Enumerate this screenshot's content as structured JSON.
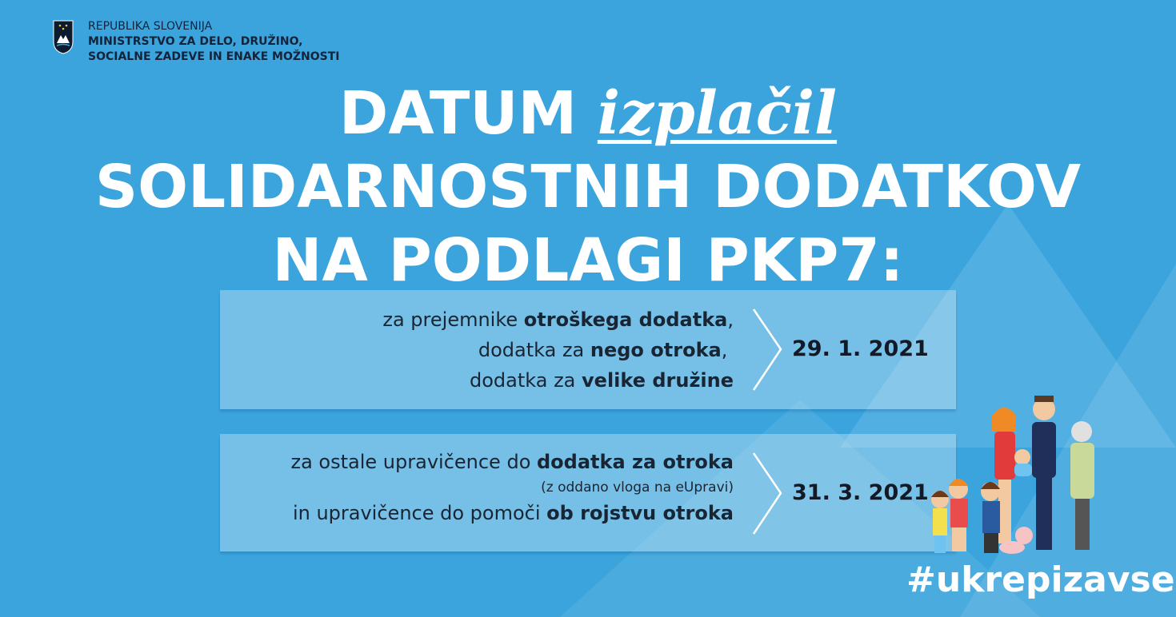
{
  "header": {
    "line1": "REPUBLIKA SLOVENIJA",
    "line2": "MINISTRSTVO ZA DELO, DRUŽINO,",
    "line3": "SOCIALNE ZADEVE IN ENAKE MOŽNOSTI",
    "crest_icon": "slovenia-coat-of-arms"
  },
  "title": {
    "word1": "DATUM",
    "accent": "izplačil",
    "line2": "SOLIDARNOSTNIH DODATKOV",
    "line3": "NA PODLAGI PKP7:"
  },
  "rows": [
    {
      "l1a": "za prejemnike ",
      "l1b": "otroškega dodatka",
      "l1c": ",",
      "l2a": "dodatka za ",
      "l2b": "nego otroka",
      "l2c": ",",
      "l3a": "dodatka za ",
      "l3b": "velike družine",
      "date": "29. 1. 2021"
    },
    {
      "l1a": "za ostale upravičence do ",
      "l1b": "dodatka za otroka",
      "note": "(z oddano vloga na eUpravi)",
      "l3a": "in upravičence do pomoči ",
      "l3b": "ob rojstvu otroka",
      "date": "31. 3. 2021"
    }
  ],
  "hashtag": "#ukrepizavse",
  "colors": {
    "background": "#3ba4dd",
    "text_dark": "#14233a",
    "title": "#ffffff"
  }
}
